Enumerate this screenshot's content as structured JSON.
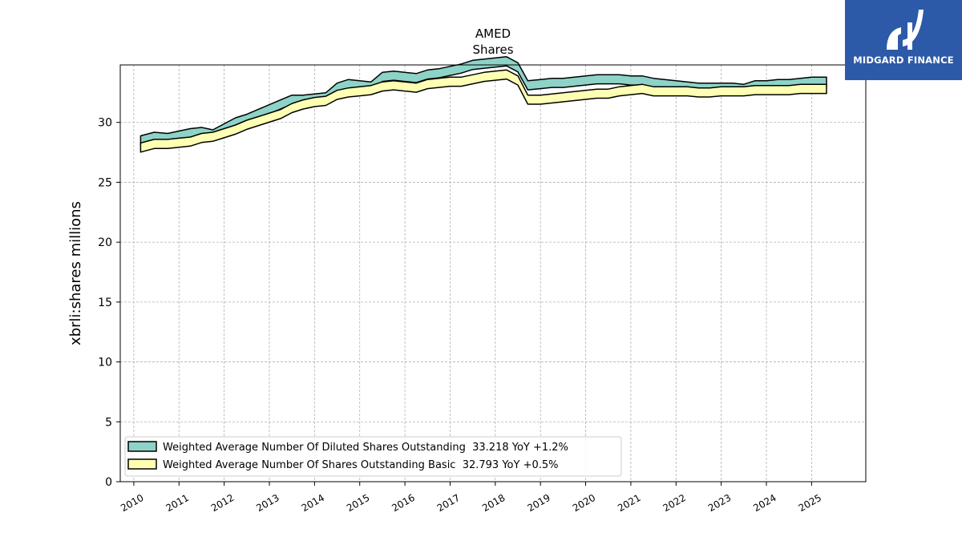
{
  "brand": {
    "name": "MIDGARD FINANCE",
    "logo_color": "#2d5aa8"
  },
  "chart_data": {
    "type": "area",
    "title": "AMED",
    "subtitle": "Shares",
    "xlabel": "",
    "ylabel": "xbrli:shares millions",
    "x_ticks": [
      "2010",
      "2011",
      "2012",
      "2013",
      "2014",
      "2015",
      "2016",
      "2017",
      "2018",
      "2019",
      "2020",
      "2021",
      "2022",
      "2023",
      "2024",
      "2025"
    ],
    "y_ticks": [
      0,
      5,
      10,
      15,
      20,
      25,
      30
    ],
    "ylim": [
      0,
      34.8
    ],
    "xlim": [
      2009.7,
      2026.2
    ],
    "grid": true,
    "legend_position": "lower-left",
    "x": [
      2010.15,
      2010.45,
      2010.75,
      2011.0,
      2011.25,
      2011.5,
      2011.75,
      2012.0,
      2012.25,
      2012.5,
      2012.75,
      2013.0,
      2013.25,
      2013.5,
      2013.75,
      2014.0,
      2014.25,
      2014.5,
      2014.75,
      2015.0,
      2015.25,
      2015.5,
      2015.75,
      2016.0,
      2016.25,
      2016.5,
      2016.75,
      2017.0,
      2017.25,
      2017.5,
      2017.75,
      2018.0,
      2018.25,
      2018.5,
      2018.72,
      2019.0,
      2019.25,
      2019.5,
      2019.75,
      2020.0,
      2020.25,
      2020.5,
      2020.75,
      2021.0,
      2021.25,
      2021.5,
      2021.75,
      2022.0,
      2022.25,
      2022.5,
      2022.75,
      2023.0,
      2023.25,
      2023.5,
      2023.75,
      2024.0,
      2024.25,
      2024.5,
      2024.75,
      2025.0,
      2025.33
    ],
    "series": [
      {
        "name": "Weighted Average Number Of Diluted Shares Outstanding",
        "legend": "Weighted Average Number Of Diluted Shares Outstanding  33.218 YoY +1.2%",
        "color": "#8dd3c7",
        "values": [
          28.5,
          28.8,
          28.7,
          28.9,
          29.1,
          29.2,
          29.0,
          29.5,
          30.0,
          30.3,
          30.7,
          31.1,
          31.5,
          31.9,
          31.9,
          32.0,
          32.1,
          32.9,
          33.2,
          33.1,
          33.0,
          33.8,
          33.9,
          33.8,
          33.7,
          34.0,
          34.1,
          34.3,
          34.5,
          34.8,
          34.9,
          35.0,
          35.1,
          34.6,
          33.1,
          33.2,
          33.3,
          33.3,
          33.4,
          33.5,
          33.6,
          33.6,
          33.6,
          33.5,
          33.5,
          33.3,
          33.2,
          33.1,
          33.0,
          32.9,
          32.9,
          32.9,
          32.9,
          32.8,
          33.1,
          33.1,
          33.2,
          33.2,
          33.3,
          33.4,
          33.4
        ]
      },
      {
        "name": "Weighted Average Number Of Shares Outstanding Basic",
        "legend": "Weighted Average Number Of Shares Outstanding Basic  32.793 YoY +0.5%",
        "color": "#ffffb3",
        "values": [
          27.9,
          28.2,
          28.2,
          28.3,
          28.4,
          28.7,
          28.8,
          29.1,
          29.4,
          29.8,
          30.1,
          30.4,
          30.7,
          31.2,
          31.5,
          31.7,
          31.8,
          32.3,
          32.5,
          32.6,
          32.7,
          33.0,
          33.1,
          33.0,
          32.9,
          33.2,
          33.3,
          33.4,
          33.4,
          33.6,
          33.8,
          33.9,
          34.0,
          33.5,
          31.9,
          31.9,
          32.0,
          32.1,
          32.2,
          32.3,
          32.4,
          32.4,
          32.6,
          32.7,
          32.8,
          32.6,
          32.6,
          32.6,
          32.6,
          32.5,
          32.5,
          32.6,
          32.6,
          32.6,
          32.7,
          32.7,
          32.7,
          32.7,
          32.8,
          32.8,
          32.8
        ]
      }
    ]
  }
}
